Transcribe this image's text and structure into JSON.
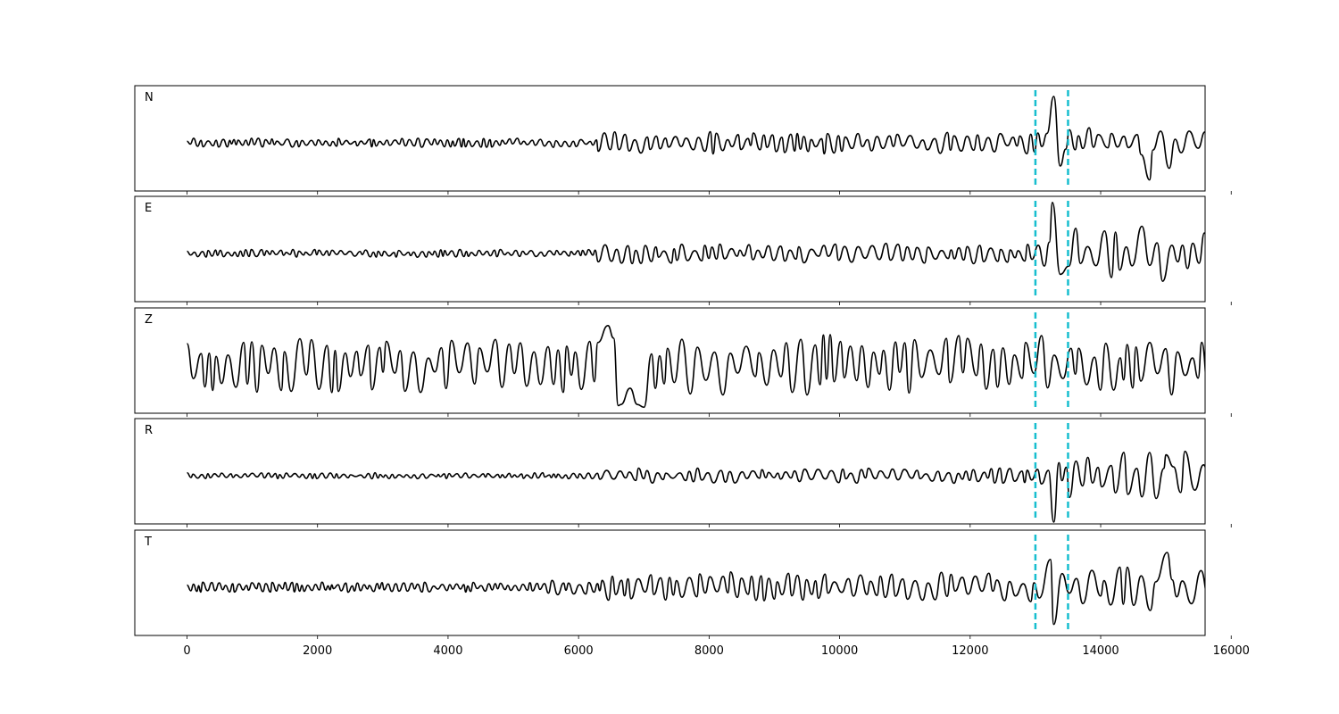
{
  "chart_data": {
    "type": "line",
    "title": "",
    "xlabel": "",
    "ylabel": "",
    "xlim": [
      -800,
      15600
    ],
    "x_ticks": [
      0,
      2000,
      4000,
      6000,
      8000,
      10000,
      12000,
      14000,
      16000
    ],
    "x_tick_labels": [
      "0",
      "2000",
      "4000",
      "6000",
      "8000",
      "10000",
      "12000",
      "14000",
      "16000"
    ],
    "sample_count": 15800,
    "grid": false,
    "legend": "none",
    "colors": {
      "trace": "#000000",
      "pick": "#17becf",
      "frame": "#000000"
    },
    "picks": [
      13000,
      13500
    ],
    "panels": [
      {
        "label": "N",
        "segments": [
          {
            "x_start": 0,
            "x_end": 6300,
            "amplitude": 0.09,
            "period": 120
          },
          {
            "x_start": 6300,
            "x_end": 13000,
            "amplitude": 0.22,
            "period": 170
          },
          {
            "x_start": 13000,
            "x_end": 13500,
            "amplitude": 0.25,
            "period": 200
          },
          {
            "x_start": 13500,
            "x_end": 15800,
            "amplitude": 0.3,
            "period": 220
          }
        ],
        "peaks": [
          {
            "x": 13280,
            "y": 1.0
          },
          {
            "x": 13380,
            "y": -0.5
          },
          {
            "x": 14750,
            "y": -0.8
          },
          {
            "x": 15050,
            "y": -0.55
          }
        ]
      },
      {
        "label": "E",
        "segments": [
          {
            "x_start": 0,
            "x_end": 6300,
            "amplitude": 0.08,
            "period": 120
          },
          {
            "x_start": 6300,
            "x_end": 13000,
            "amplitude": 0.2,
            "period": 170
          },
          {
            "x_start": 13000,
            "x_end": 13500,
            "amplitude": 0.25,
            "period": 200
          },
          {
            "x_start": 13500,
            "x_end": 15800,
            "amplitude": 0.55,
            "period": 230
          }
        ],
        "peaks": [
          {
            "x": 13260,
            "y": 1.1
          },
          {
            "x": 13380,
            "y": -0.45
          },
          {
            "x": 14950,
            "y": -0.6
          }
        ]
      },
      {
        "label": "Z",
        "segments": [
          {
            "x_start": 0,
            "x_end": 6400,
            "amplitude": 0.55,
            "period": 200
          },
          {
            "x_start": 6400,
            "x_end": 7100,
            "amplitude": 0.9,
            "period": 200
          },
          {
            "x_start": 7100,
            "x_end": 15800,
            "amplitude": 0.6,
            "period": 210
          }
        ],
        "peaks": [
          {
            "x": 6450,
            "y": 0.85
          },
          {
            "x": 6650,
            "y": -0.85
          },
          {
            "x": 6900,
            "y": -0.85
          },
          {
            "x": 15750,
            "y": 0.65
          }
        ]
      },
      {
        "label": "R",
        "segments": [
          {
            "x_start": 0,
            "x_end": 6300,
            "amplitude": 0.06,
            "period": 120
          },
          {
            "x_start": 6300,
            "x_end": 13000,
            "amplitude": 0.15,
            "period": 170
          },
          {
            "x_start": 13000,
            "x_end": 13500,
            "amplitude": 0.3,
            "period": 200
          },
          {
            "x_start": 13500,
            "x_end": 15800,
            "amplitude": 0.5,
            "period": 230
          }
        ],
        "peaks": [
          {
            "x": 13280,
            "y": -1.0
          },
          {
            "x": 14750,
            "y": 0.5
          },
          {
            "x": 15000,
            "y": 0.45
          }
        ]
      },
      {
        "label": "T",
        "segments": [
          {
            "x_start": 0,
            "x_end": 5400,
            "amplitude": 0.1,
            "period": 110
          },
          {
            "x_start": 5400,
            "x_end": 6400,
            "amplitude": 0.15,
            "period": 150
          },
          {
            "x_start": 6400,
            "x_end": 13000,
            "amplitude": 0.3,
            "period": 180
          },
          {
            "x_start": 13000,
            "x_end": 13500,
            "amplitude": 0.3,
            "period": 200
          },
          {
            "x_start": 13500,
            "x_end": 15800,
            "amplitude": 0.45,
            "period": 220
          }
        ],
        "peaks": [
          {
            "x": 13280,
            "y": -0.8
          },
          {
            "x": 13230,
            "y": 0.6
          },
          {
            "x": 14750,
            "y": 1.0
          },
          {
            "x": 14760,
            "y": -0.5
          },
          {
            "x": 15020,
            "y": 0.75
          }
        ]
      }
    ]
  }
}
